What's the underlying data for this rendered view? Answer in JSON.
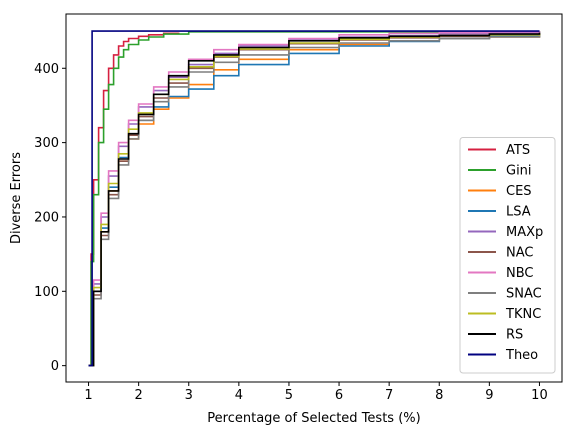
{
  "chart_data": {
    "type": "line",
    "title": "",
    "xlabel": "Percentage of Selected Tests (%)",
    "ylabel": "Diverse Errors",
    "xlim": [
      0.55,
      10.45
    ],
    "ylim": [
      -22,
      473
    ],
    "xticks": [
      1,
      2,
      3,
      4,
      5,
      6,
      7,
      8,
      9,
      10
    ],
    "yticks": [
      0,
      100,
      200,
      300,
      400
    ],
    "grid": false,
    "legend_position": "lower-right",
    "series": [
      {
        "name": "ATS",
        "color": "#d62040",
        "x": [
          1.0,
          1.05,
          1.1,
          1.2,
          1.3,
          1.4,
          1.5,
          1.6,
          1.7,
          1.8,
          2.0,
          2.2,
          2.5,
          2.8
        ],
        "y": [
          0,
          150,
          250,
          320,
          370,
          400,
          418,
          430,
          436,
          440,
          443,
          445,
          447,
          448
        ]
      },
      {
        "name": "Gini",
        "color": "#2ca02c",
        "x": [
          1.0,
          1.05,
          1.1,
          1.2,
          1.3,
          1.4,
          1.5,
          1.6,
          1.7,
          1.8,
          2.0,
          2.2,
          2.5,
          3.0,
          10.0
        ],
        "y": [
          0,
          140,
          230,
          300,
          345,
          378,
          400,
          415,
          425,
          432,
          438,
          442,
          446,
          449,
          450
        ]
      },
      {
        "name": "CES",
        "color": "#ff7f0e",
        "x": [
          1.0,
          1.1,
          1.25,
          1.4,
          1.6,
          1.8,
          2.0,
          2.3,
          2.6,
          3.0,
          3.5,
          4.0,
          5.0,
          6.0,
          7.0,
          8.0,
          9.0,
          10.0
        ],
        "y": [
          0,
          100,
          180,
          235,
          275,
          305,
          325,
          345,
          360,
          378,
          398,
          412,
          425,
          432,
          437,
          440,
          442,
          444
        ]
      },
      {
        "name": "LSA",
        "color": "#1f77b4",
        "x": [
          1.0,
          1.1,
          1.25,
          1.4,
          1.6,
          1.8,
          2.0,
          2.3,
          2.6,
          3.0,
          3.5,
          4.0,
          5.0,
          6.0,
          7.0,
          8.0,
          9.0,
          10.0
        ],
        "y": [
          0,
          100,
          185,
          240,
          280,
          310,
          330,
          348,
          362,
          372,
          390,
          405,
          420,
          430,
          436,
          440,
          443,
          446
        ]
      },
      {
        "name": "MAXp",
        "color": "#9467bd",
        "x": [
          1.0,
          1.1,
          1.25,
          1.4,
          1.6,
          1.8,
          2.0,
          2.3,
          2.6,
          3.0,
          3.5,
          4.0,
          5.0,
          6.0,
          7.0,
          8.0,
          9.0,
          10.0
        ],
        "y": [
          0,
          110,
          200,
          255,
          295,
          325,
          348,
          370,
          388,
          405,
          420,
          430,
          438,
          442,
          444,
          446,
          447,
          448
        ]
      },
      {
        "name": "NAC",
        "color": "#8c564b",
        "x": [
          1.0,
          1.1,
          1.25,
          1.4,
          1.6,
          1.8,
          2.0,
          2.3,
          2.6,
          3.0,
          3.5,
          4.0,
          5.0,
          6.0,
          7.0,
          8.0,
          9.0,
          10.0
        ],
        "y": [
          0,
          95,
          175,
          230,
          275,
          310,
          335,
          360,
          380,
          400,
          415,
          425,
          433,
          438,
          441,
          443,
          445,
          447
        ]
      },
      {
        "name": "NBC",
        "color": "#e377c2",
        "x": [
          1.0,
          1.1,
          1.25,
          1.4,
          1.6,
          1.8,
          2.0,
          2.3,
          2.6,
          3.0,
          3.5,
          4.0,
          5.0,
          6.0,
          7.0,
          8.0,
          9.0,
          10.0
        ],
        "y": [
          0,
          115,
          205,
          262,
          300,
          330,
          352,
          375,
          395,
          412,
          425,
          432,
          440,
          445,
          447,
          448,
          449,
          450
        ]
      },
      {
        "name": "SNAC",
        "color": "#7f7f7f",
        "x": [
          1.0,
          1.1,
          1.25,
          1.4,
          1.6,
          1.8,
          2.0,
          2.3,
          2.6,
          3.0,
          3.5,
          4.0,
          5.0,
          6.0,
          7.0,
          8.0,
          9.0,
          10.0
        ],
        "y": [
          0,
          90,
          170,
          225,
          270,
          305,
          330,
          355,
          375,
          395,
          408,
          418,
          428,
          434,
          437,
          440,
          442,
          445
        ]
      },
      {
        "name": "TKNC",
        "color": "#bcbd22",
        "x": [
          1.0,
          1.1,
          1.25,
          1.4,
          1.6,
          1.8,
          2.0,
          2.3,
          2.6,
          3.0,
          3.5,
          4.0,
          5.0,
          6.0,
          7.0,
          8.0,
          9.0,
          10.0
        ],
        "y": [
          0,
          105,
          190,
          245,
          285,
          318,
          340,
          365,
          385,
          402,
          416,
          426,
          434,
          439,
          442,
          444,
          445,
          447
        ]
      },
      {
        "name": "RS",
        "color": "#000000",
        "x": [
          1.0,
          1.1,
          1.25,
          1.4,
          1.6,
          1.8,
          2.0,
          2.3,
          2.6,
          3.0,
          3.5,
          4.0,
          5.0,
          6.0,
          7.0,
          8.0,
          9.0,
          10.0
        ],
        "y": [
          0,
          100,
          180,
          235,
          278,
          312,
          338,
          365,
          390,
          410,
          418,
          428,
          437,
          441,
          443,
          444,
          446,
          448
        ]
      },
      {
        "name": "Theo",
        "color": "#000080",
        "x": [
          1.0,
          1.07,
          10.0
        ],
        "y": [
          0,
          450,
          450
        ]
      }
    ]
  }
}
